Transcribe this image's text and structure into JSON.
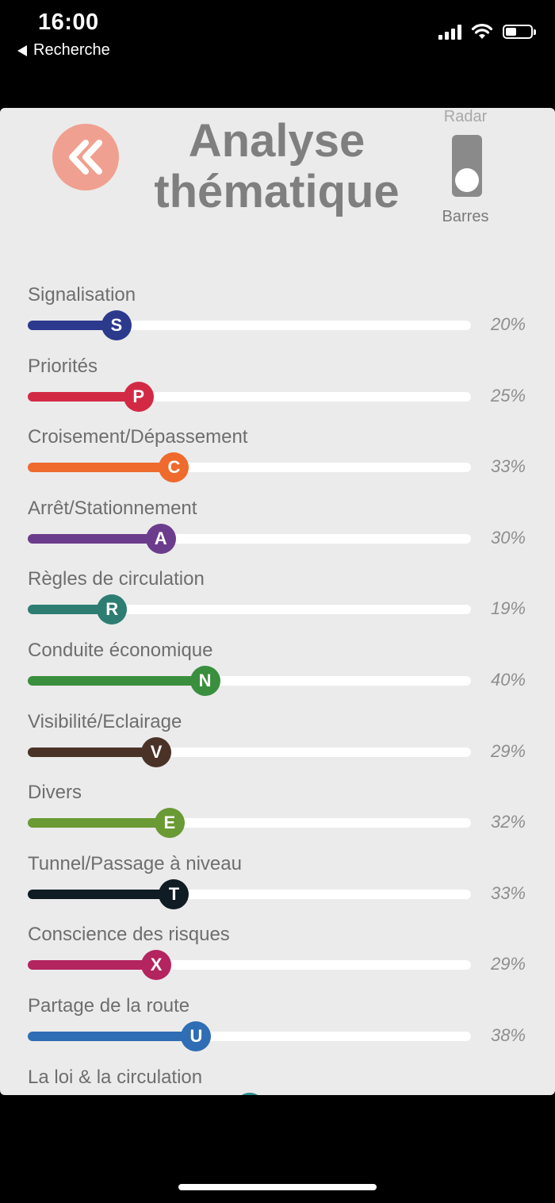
{
  "status": {
    "time": "16:00",
    "back_app": "Recherche"
  },
  "header": {
    "title_line1": "Analyse",
    "title_line2": "thématique",
    "back_icon": "double-chevron-left-icon",
    "accent_color": "#f0a090"
  },
  "view_toggle": {
    "top_label": "Radar",
    "bottom_label": "Barres",
    "selected": "Barres"
  },
  "themes": [
    {
      "label": "Signalisation",
      "letter": "S",
      "value": 20,
      "value_text": "20%",
      "color": "#2b3a8c"
    },
    {
      "label": "Priorités",
      "letter": "P",
      "value": 25,
      "value_text": "25%",
      "color": "#d22a45"
    },
    {
      "label": "Croisement/Dépassement",
      "letter": "C",
      "value": 33,
      "value_text": "33%",
      "color": "#ee6a2d"
    },
    {
      "label": "Arrêt/Stationnement",
      "letter": "A",
      "value": 30,
      "value_text": "30%",
      "color": "#6c3c8c"
    },
    {
      "label": "Règles de circulation",
      "letter": "R",
      "value": 19,
      "value_text": "19%",
      "color": "#2e7d72"
    },
    {
      "label": "Conduite économique",
      "letter": "N",
      "value": 40,
      "value_text": "40%",
      "color": "#3a8f3e"
    },
    {
      "label": "Visibilité/Eclairage",
      "letter": "V",
      "value": 29,
      "value_text": "29%",
      "color": "#4a3326"
    },
    {
      "label": "Divers",
      "letter": "E",
      "value": 32,
      "value_text": "32%",
      "color": "#6a9a34"
    },
    {
      "label": "Tunnel/Passage à niveau",
      "letter": "T",
      "value": 33,
      "value_text": "33%",
      "color": "#0f1c24"
    },
    {
      "label": "Conscience des risques",
      "letter": "X",
      "value": 29,
      "value_text": "29%",
      "color": "#b4245f"
    },
    {
      "label": "Partage de la route",
      "letter": "U",
      "value": 38,
      "value_text": "38%",
      "color": "#2f6db5"
    },
    {
      "label": "La loi & la circulation",
      "letter": "",
      "value": 50,
      "value_text": "",
      "color": "#2e8a8a"
    }
  ]
}
